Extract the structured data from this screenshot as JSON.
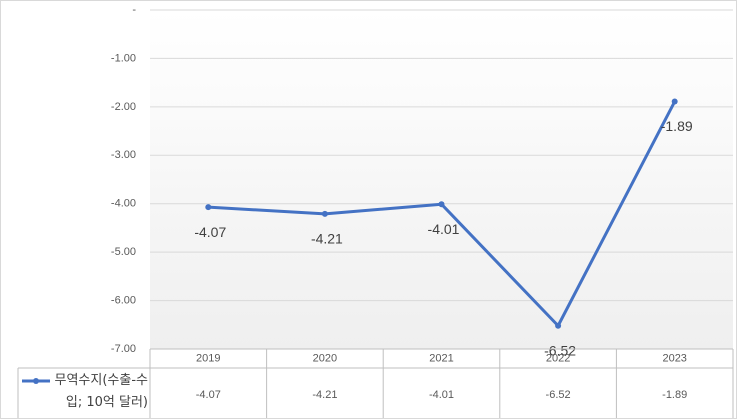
{
  "chart_data": {
    "type": "line",
    "categories": [
      "2019",
      "2020",
      "2021",
      "2022",
      "2023"
    ],
    "series": [
      {
        "name": "무역수지(수출-수입; 10억 달러)",
        "color": "#4472c4",
        "values": [
          -4.07,
          -4.21,
          -4.01,
          -6.52,
          -1.89
        ]
      }
    ],
    "ylim": [
      -7,
      0
    ],
    "yticks": [
      {
        "value": 0,
        "label": "-"
      },
      {
        "value": -1,
        "label": "-1.00"
      },
      {
        "value": -2,
        "label": "-2.00"
      },
      {
        "value": -3,
        "label": "-3.00"
      },
      {
        "value": -4,
        "label": "-4.00"
      },
      {
        "value": -5,
        "label": "-5.00"
      },
      {
        "value": -6,
        "label": "-6.00"
      },
      {
        "value": -7,
        "label": "-7.00"
      }
    ],
    "grid": true,
    "data_table": true
  }
}
